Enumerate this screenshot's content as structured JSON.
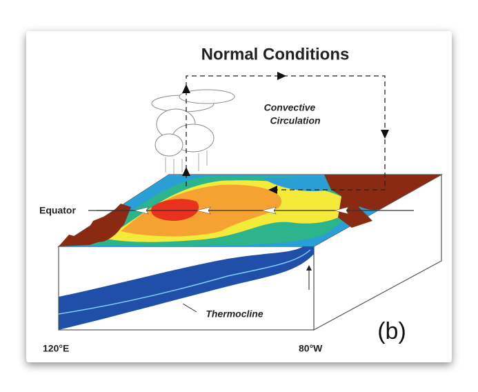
{
  "title": "Normal Conditions",
  "circulation_label": [
    "Convective",
    "Circulation"
  ],
  "equator_label": "Equator",
  "thermocline_label": "Thermocline",
  "west_label": "120°E",
  "east_label": "80°W",
  "panel_label": "(b)"
}
